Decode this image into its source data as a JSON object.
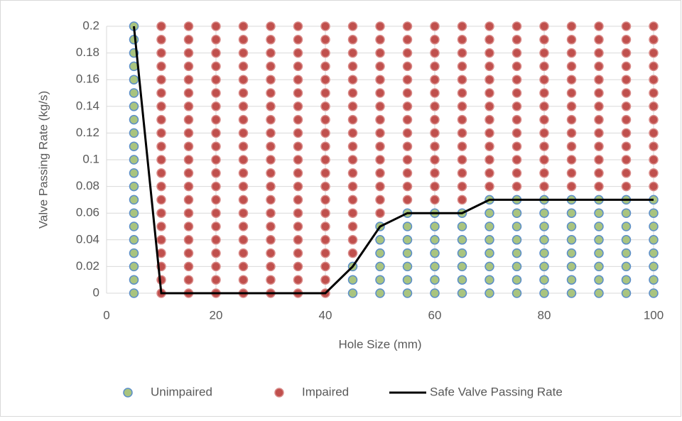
{
  "chart_data": {
    "type": "scatter",
    "xlabel": "Hole Size (mm)",
    "ylabel": "Valve Passing Rate (kg/s)",
    "xlim": [
      0,
      100
    ],
    "xticks": [
      0,
      20,
      40,
      60,
      80,
      100
    ],
    "ylim": [
      0,
      0.2
    ],
    "yticks": [
      0,
      0.02,
      0.04,
      0.06,
      0.08,
      0.1,
      0.12,
      0.14,
      0.16,
      0.18,
      0.2
    ],
    "grid": true,
    "legend": "bottom",
    "series": [
      {
        "name": "Unimpaired",
        "type": "scatter",
        "color": "#a9c47f",
        "edgecolor": "#5b8ec9",
        "x": [
          5,
          45,
          50,
          55,
          60,
          65,
          70,
          75,
          80,
          85,
          90,
          95,
          100
        ],
        "values": [
          [
            0,
            0.01,
            0.02,
            0.03,
            0.04,
            0.05,
            0.06,
            0.07,
            0.08,
            0.09,
            0.1,
            0.11,
            0.12,
            0.13,
            0.14,
            0.15,
            0.16,
            0.17,
            0.18,
            0.19,
            0.2
          ],
          [
            0,
            0.01,
            0.02
          ],
          [
            0,
            0.01,
            0.02,
            0.03,
            0.04,
            0.05
          ],
          [
            0,
            0.01,
            0.02,
            0.03,
            0.04,
            0.05,
            0.06
          ],
          [
            0,
            0.01,
            0.02,
            0.03,
            0.04,
            0.05,
            0.06
          ],
          [
            0,
            0.01,
            0.02,
            0.03,
            0.04,
            0.05,
            0.06
          ],
          [
            0,
            0.01,
            0.02,
            0.03,
            0.04,
            0.05,
            0.06,
            0.07
          ],
          [
            0,
            0.01,
            0.02,
            0.03,
            0.04,
            0.05,
            0.06,
            0.07
          ],
          [
            0,
            0.01,
            0.02,
            0.03,
            0.04,
            0.05,
            0.06,
            0.07
          ],
          [
            0,
            0.01,
            0.02,
            0.03,
            0.04,
            0.05,
            0.06,
            0.07
          ],
          [
            0,
            0.01,
            0.02,
            0.03,
            0.04,
            0.05,
            0.06,
            0.07
          ],
          [
            0,
            0.01,
            0.02,
            0.03,
            0.04,
            0.05,
            0.06,
            0.07
          ],
          [
            0,
            0.01,
            0.02,
            0.03,
            0.04,
            0.05,
            0.06,
            0.07
          ]
        ]
      },
      {
        "name": "Impaired",
        "type": "scatter",
        "color": "#c0504d",
        "edgecolor": "#d98a88",
        "x": [
          10,
          15,
          20,
          25,
          30,
          35,
          40,
          45,
          50,
          55,
          60,
          65,
          70,
          75,
          80,
          85,
          90,
          95,
          100
        ],
        "values": [
          [
            0,
            0.01,
            0.02,
            0.03,
            0.04,
            0.05,
            0.06,
            0.07,
            0.08,
            0.09,
            0.1,
            0.11,
            0.12,
            0.13,
            0.14,
            0.15,
            0.16,
            0.17,
            0.18,
            0.19,
            0.2
          ],
          [
            0,
            0.01,
            0.02,
            0.03,
            0.04,
            0.05,
            0.06,
            0.07,
            0.08,
            0.09,
            0.1,
            0.11,
            0.12,
            0.13,
            0.14,
            0.15,
            0.16,
            0.17,
            0.18,
            0.19,
            0.2
          ],
          [
            0,
            0.01,
            0.02,
            0.03,
            0.04,
            0.05,
            0.06,
            0.07,
            0.08,
            0.09,
            0.1,
            0.11,
            0.12,
            0.13,
            0.14,
            0.15,
            0.16,
            0.17,
            0.18,
            0.19,
            0.2
          ],
          [
            0,
            0.01,
            0.02,
            0.03,
            0.04,
            0.05,
            0.06,
            0.07,
            0.08,
            0.09,
            0.1,
            0.11,
            0.12,
            0.13,
            0.14,
            0.15,
            0.16,
            0.17,
            0.18,
            0.19,
            0.2
          ],
          [
            0,
            0.01,
            0.02,
            0.03,
            0.04,
            0.05,
            0.06,
            0.07,
            0.08,
            0.09,
            0.1,
            0.11,
            0.12,
            0.13,
            0.14,
            0.15,
            0.16,
            0.17,
            0.18,
            0.19,
            0.2
          ],
          [
            0,
            0.01,
            0.02,
            0.03,
            0.04,
            0.05,
            0.06,
            0.07,
            0.08,
            0.09,
            0.1,
            0.11,
            0.12,
            0.13,
            0.14,
            0.15,
            0.16,
            0.17,
            0.18,
            0.19,
            0.2
          ],
          [
            0,
            0.01,
            0.02,
            0.03,
            0.04,
            0.05,
            0.06,
            0.07,
            0.08,
            0.09,
            0.1,
            0.11,
            0.12,
            0.13,
            0.14,
            0.15,
            0.16,
            0.17,
            0.18,
            0.19,
            0.2
          ],
          [
            0.03,
            0.04,
            0.05,
            0.06,
            0.07,
            0.08,
            0.09,
            0.1,
            0.11,
            0.12,
            0.13,
            0.14,
            0.15,
            0.16,
            0.17,
            0.18,
            0.19,
            0.2
          ],
          [
            0.06,
            0.07,
            0.08,
            0.09,
            0.1,
            0.11,
            0.12,
            0.13,
            0.14,
            0.15,
            0.16,
            0.17,
            0.18,
            0.19,
            0.2
          ],
          [
            0.07,
            0.08,
            0.09,
            0.1,
            0.11,
            0.12,
            0.13,
            0.14,
            0.15,
            0.16,
            0.17,
            0.18,
            0.19,
            0.2
          ],
          [
            0.07,
            0.08,
            0.09,
            0.1,
            0.11,
            0.12,
            0.13,
            0.14,
            0.15,
            0.16,
            0.17,
            0.18,
            0.19,
            0.2
          ],
          [
            0.07,
            0.08,
            0.09,
            0.1,
            0.11,
            0.12,
            0.13,
            0.14,
            0.15,
            0.16,
            0.17,
            0.18,
            0.19,
            0.2
          ],
          [
            0.08,
            0.09,
            0.1,
            0.11,
            0.12,
            0.13,
            0.14,
            0.15,
            0.16,
            0.17,
            0.18,
            0.19,
            0.2
          ],
          [
            0.08,
            0.09,
            0.1,
            0.11,
            0.12,
            0.13,
            0.14,
            0.15,
            0.16,
            0.17,
            0.18,
            0.19,
            0.2
          ],
          [
            0.08,
            0.09,
            0.1,
            0.11,
            0.12,
            0.13,
            0.14,
            0.15,
            0.16,
            0.17,
            0.18,
            0.19,
            0.2
          ],
          [
            0.08,
            0.09,
            0.1,
            0.11,
            0.12,
            0.13,
            0.14,
            0.15,
            0.16,
            0.17,
            0.18,
            0.19,
            0.2
          ],
          [
            0.08,
            0.09,
            0.1,
            0.11,
            0.12,
            0.13,
            0.14,
            0.15,
            0.16,
            0.17,
            0.18,
            0.19,
            0.2
          ],
          [
            0.08,
            0.09,
            0.1,
            0.11,
            0.12,
            0.13,
            0.14,
            0.15,
            0.16,
            0.17,
            0.18,
            0.19,
            0.2
          ],
          [
            0.08,
            0.09,
            0.1,
            0.11,
            0.12,
            0.13,
            0.14,
            0.15,
            0.16,
            0.17,
            0.18,
            0.19,
            0.2
          ]
        ]
      },
      {
        "name": "Safe Valve Passing Rate",
        "type": "line",
        "color": "#000000",
        "x": [
          5,
          10,
          15,
          20,
          25,
          30,
          35,
          40,
          45,
          50,
          55,
          60,
          65,
          70,
          75,
          80,
          85,
          90,
          95,
          100
        ],
        "values": [
          0.2,
          0,
          0,
          0,
          0,
          0,
          0,
          0,
          0.02,
          0.05,
          0.06,
          0.06,
          0.06,
          0.07,
          0.07,
          0.07,
          0.07,
          0.07,
          0.07,
          0.07
        ]
      }
    ]
  }
}
